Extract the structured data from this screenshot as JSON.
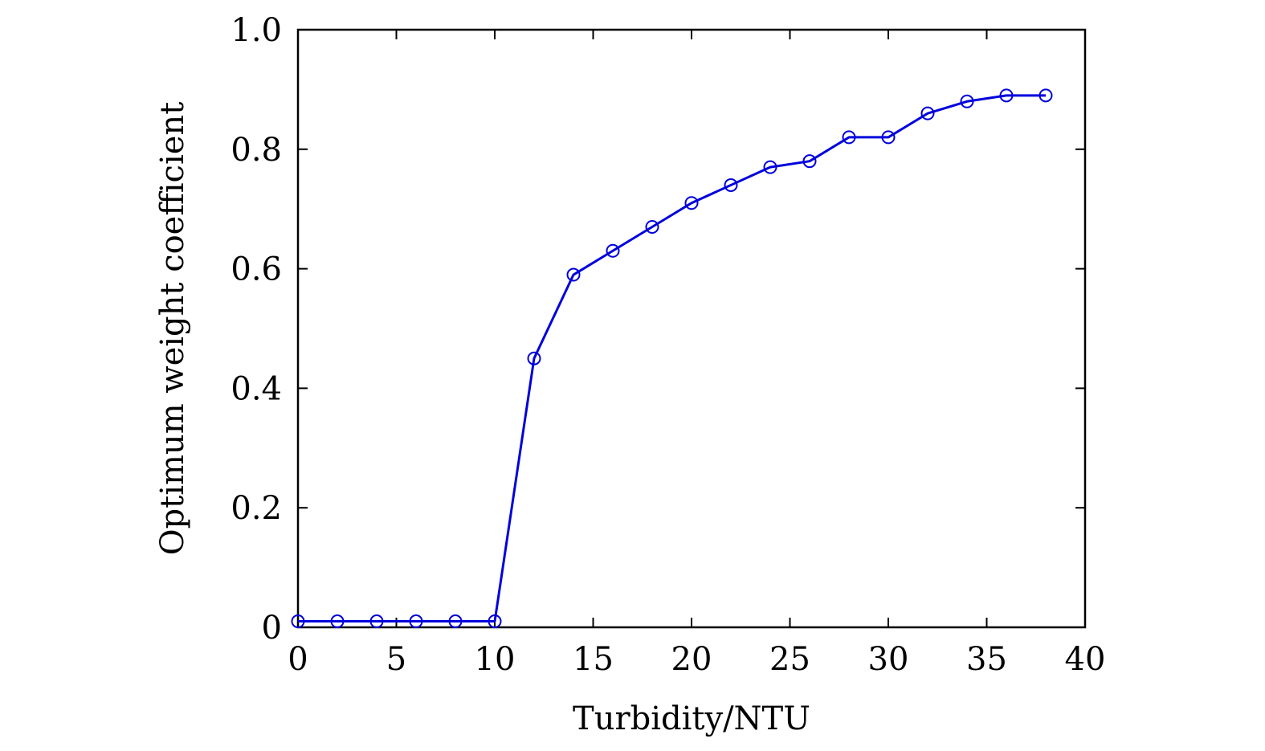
{
  "chart_data": {
    "type": "line",
    "title": "",
    "xlabel": "Turbidity/NTU",
    "ylabel": "Optimum weight coefficient",
    "xlim": [
      0,
      40
    ],
    "ylim": [
      0,
      1.0
    ],
    "x_ticks": [
      "0",
      "5",
      "10",
      "15",
      "20",
      "25",
      "30",
      "35",
      "40"
    ],
    "y_ticks": [
      "0",
      "0.2",
      "0.4",
      "0.6",
      "0.8",
      "1.0"
    ],
    "grid": false,
    "legend": "none",
    "series": [
      {
        "color": "#0000dd",
        "marker": "open-circle",
        "x": [
          0,
          2,
          4,
          6,
          8,
          10,
          12,
          14,
          16,
          18,
          20,
          22,
          24,
          26,
          28,
          30,
          32,
          34,
          36,
          38
        ],
        "y": [
          0.01,
          0.01,
          0.01,
          0.01,
          0.01,
          0.01,
          0.45,
          0.59,
          0.63,
          0.67,
          0.71,
          0.74,
          0.77,
          0.78,
          0.82,
          0.82,
          0.86,
          0.88,
          0.89,
          0.89
        ]
      }
    ]
  }
}
